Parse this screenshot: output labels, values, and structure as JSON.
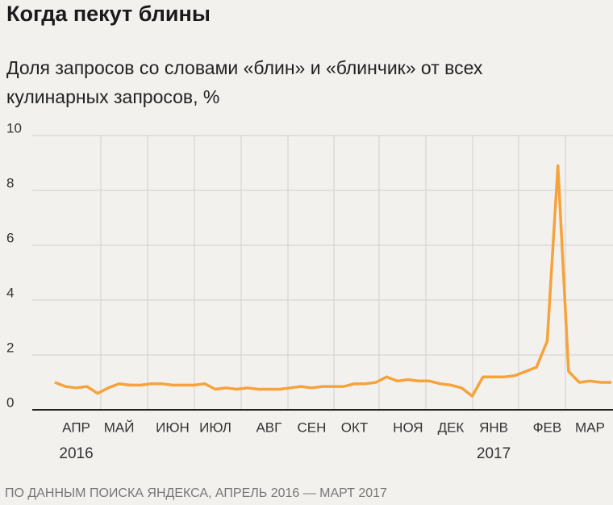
{
  "chart_data": {
    "type": "line",
    "title": "Когда пекут блины",
    "subtitle": "Доля запросов со словами «блин» и «блинчик» от всех кулинарных запросов, %",
    "source": "ПО ДАННЫМ ПОИСКА ЯНДЕКСА, АПРЕЛЬ 2016 — МАРТ 2017",
    "categories": [
      null,
      null,
      "АПР",
      null,
      null,
      null,
      "МАЙ",
      null,
      null,
      null,
      null,
      "ИЮН",
      null,
      null,
      null,
      "ИЮЛ",
      null,
      null,
      null,
      null,
      "АВГ",
      null,
      null,
      null,
      "СЕН",
      null,
      null,
      null,
      "ОКТ",
      null,
      null,
      null,
      null,
      "НОЯ",
      null,
      null,
      null,
      "ДЕК",
      null,
      null,
      null,
      "ЯНВ",
      null,
      null,
      null,
      null,
      "ФЕВ",
      null,
      null,
      null,
      "МАР",
      null,
      null
    ],
    "years": [
      null,
      null,
      "2016",
      null,
      null,
      null,
      null,
      null,
      null,
      null,
      null,
      null,
      null,
      null,
      null,
      null,
      null,
      null,
      null,
      null,
      null,
      null,
      null,
      null,
      null,
      null,
      null,
      null,
      null,
      null,
      null,
      null,
      null,
      null,
      null,
      null,
      null,
      null,
      null,
      null,
      null,
      "2017",
      null,
      null,
      null,
      null,
      null,
      null,
      null,
      null,
      null,
      null,
      null
    ],
    "series": [
      {
        "color": "#f5a33a",
        "values": [
          1.0,
          0.85,
          0.8,
          0.85,
          0.6,
          0.8,
          0.95,
          0.9,
          0.9,
          0.95,
          0.95,
          0.9,
          0.9,
          0.9,
          0.95,
          0.75,
          0.8,
          0.75,
          0.8,
          0.75,
          0.75,
          0.75,
          0.8,
          0.85,
          0.8,
          0.85,
          0.85,
          0.85,
          0.95,
          0.95,
          1.0,
          1.2,
          1.05,
          1.1,
          1.05,
          1.05,
          0.95,
          0.9,
          0.8,
          0.5,
          1.2,
          1.2,
          1.2,
          1.25,
          1.4,
          1.55,
          2.5,
          8.9,
          1.4,
          1.0,
          1.05,
          1.0,
          1.0
        ]
      }
    ],
    "ylim": [
      0,
      10
    ],
    "yticks": [
      0,
      2,
      4,
      6,
      8,
      10
    ],
    "grid": true
  }
}
